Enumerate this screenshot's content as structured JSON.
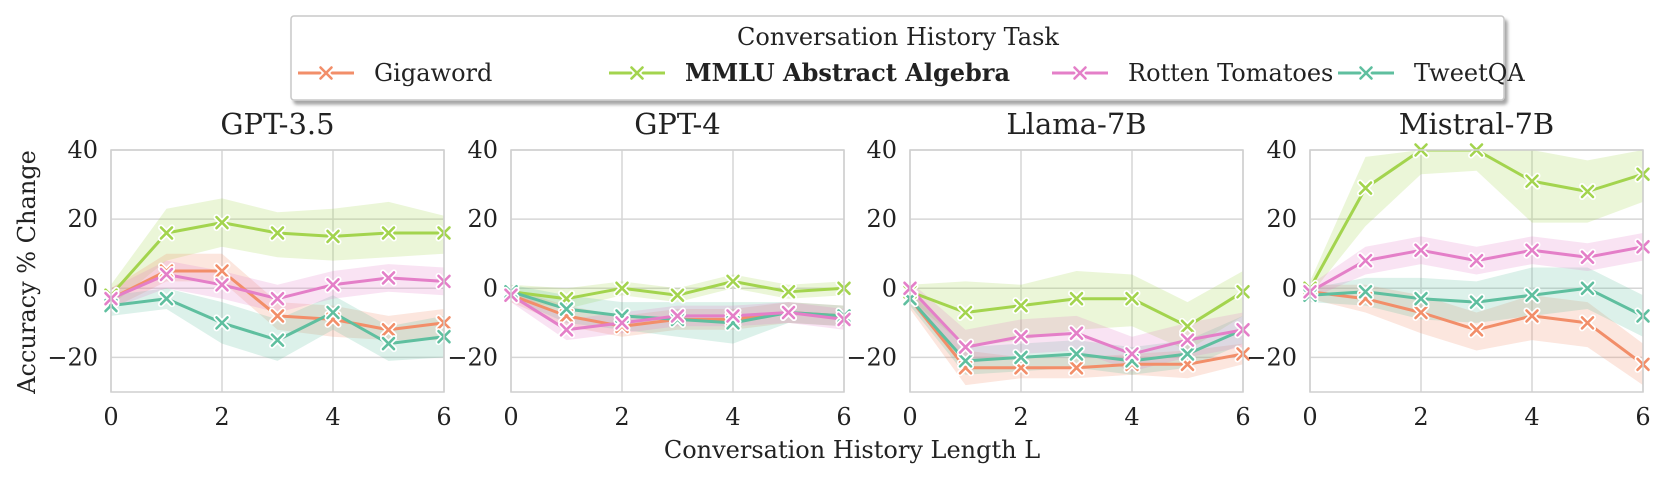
{
  "chart_data": {
    "type": "line",
    "legend": {
      "title": "Conversation History Task",
      "placement": "top-center",
      "entries": [
        {
          "name": "Gigaword",
          "color": "#f28e69",
          "bold": false
        },
        {
          "name": "MMLU Abstract Algebra",
          "color": "#a3d44e",
          "bold": true
        },
        {
          "name": "Rotten Tomatoes",
          "color": "#e47fc8",
          "bold": false
        },
        {
          "name": "TweetQA",
          "color": "#5fbf9f",
          "bold": false
        }
      ]
    },
    "xlabel": "Conversation History Length L",
    "ylabel": "Accuracy % Change",
    "xlim": [
      0,
      6
    ],
    "ylim": [
      -30,
      40
    ],
    "xticks": [
      "0",
      "2",
      "4",
      "6"
    ],
    "yticks": [
      "40",
      "20",
      "0",
      "−20"
    ],
    "x": [
      0,
      1,
      2,
      3,
      4,
      5,
      6
    ],
    "panels": [
      {
        "title": "GPT-3.5",
        "series": [
          {
            "name": "Gigaword",
            "values": [
              -3,
              5,
              5,
              -8,
              -9,
              -12,
              -10
            ],
            "lower": [
              -6,
              2,
              2,
              -12,
              -14,
              -15,
              -15
            ],
            "upper": [
              0,
              10,
              10,
              -4,
              -5,
              -8,
              -6
            ]
          },
          {
            "name": "MMLU Abstract Algebra",
            "values": [
              -2,
              16,
              19,
              16,
              15,
              16,
              16
            ],
            "lower": [
              -5,
              8,
              12,
              9,
              8,
              9,
              10
            ],
            "upper": [
              1,
              23,
              26,
              22,
              23,
              25,
              21
            ]
          },
          {
            "name": "Rotten Tomatoes",
            "values": [
              -3,
              4,
              1,
              -3,
              1,
              3,
              2
            ],
            "lower": [
              -6,
              0,
              -3,
              -7,
              -3,
              -1,
              -2
            ],
            "upper": [
              0,
              8,
              5,
              1,
              5,
              7,
              6
            ]
          },
          {
            "name": "TweetQA",
            "values": [
              -5,
              -3,
              -10,
              -15,
              -7,
              -16,
              -14
            ],
            "lower": [
              -8,
              -6,
              -16,
              -21,
              -12,
              -21,
              -20
            ],
            "upper": [
              -2,
              0,
              -4,
              -9,
              -2,
              -11,
              -8
            ]
          }
        ]
      },
      {
        "title": "GPT-4",
        "series": [
          {
            "name": "Gigaword",
            "values": [
              -2,
              -8,
              -11,
              -9,
              -9,
              -7,
              -8
            ],
            "lower": [
              -4,
              -11,
              -14,
              -12,
              -12,
              -10,
              -11
            ],
            "upper": [
              0,
              -5,
              -8,
              -6,
              -6,
              -4,
              -5
            ]
          },
          {
            "name": "MMLU Abstract Algebra",
            "values": [
              -1,
              -3,
              0,
              -2,
              2,
              -1,
              0
            ],
            "lower": [
              -3,
              -6,
              -2,
              -4,
              0,
              -3,
              -2
            ],
            "upper": [
              1,
              0,
              2,
              0,
              4,
              1,
              2
            ]
          },
          {
            "name": "Rotten Tomatoes",
            "values": [
              -2,
              -12,
              -10,
              -8,
              -8,
              -7,
              -9
            ],
            "lower": [
              -4,
              -15,
              -13,
              -11,
              -11,
              -10,
              -12
            ],
            "upper": [
              0,
              -9,
              -7,
              -5,
              -5,
              -4,
              -6
            ]
          },
          {
            "name": "TweetQA",
            "values": [
              -1,
              -6,
              -8,
              -9,
              -10,
              -7,
              -8
            ],
            "lower": [
              -3,
              -10,
              -12,
              -14,
              -16,
              -10,
              -11
            ],
            "upper": [
              1,
              -2,
              -4,
              -4,
              -4,
              -4,
              -5
            ]
          }
        ]
      },
      {
        "title": "Llama-7B",
        "series": [
          {
            "name": "Gigaword",
            "values": [
              -3,
              -23,
              -23,
              -23,
              -22,
              -22,
              -19
            ],
            "lower": [
              -6,
              -28,
              -26,
              -26,
              -25,
              -26,
              -22
            ],
            "upper": [
              0,
              -18,
              -20,
              -20,
              -19,
              -18,
              -16
            ]
          },
          {
            "name": "MMLU Abstract Algebra",
            "values": [
              -1,
              -7,
              -5,
              -3,
              -3,
              -11,
              -1
            ],
            "lower": [
              -3,
              -17,
              -15,
              -12,
              -11,
              -18,
              -8
            ],
            "upper": [
              1,
              2,
              1,
              5,
              4,
              -4,
              5
            ]
          },
          {
            "name": "Rotten Tomatoes",
            "values": [
              0,
              -17,
              -14,
              -13,
              -19,
              -15,
              -12
            ],
            "lower": [
              -2,
              -22,
              -19,
              -18,
              -24,
              -20,
              -17
            ],
            "upper": [
              2,
              -12,
              -9,
              -8,
              -14,
              -10,
              -7
            ]
          },
          {
            "name": "TweetQA",
            "values": [
              -3,
              -21,
              -20,
              -19,
              -21,
              -19,
              -12
            ],
            "lower": [
              -5,
              -25,
              -24,
              -23,
              -25,
              -23,
              -16
            ],
            "upper": [
              -1,
              -17,
              -16,
              -15,
              -17,
              -15,
              -8
            ]
          }
        ]
      },
      {
        "title": "Mistral-7B",
        "series": [
          {
            "name": "Gigaword",
            "values": [
              -1,
              -3,
              -7,
              -12,
              -8,
              -10,
              -22
            ],
            "lower": [
              -3,
              -7,
              -13,
              -18,
              -15,
              -17,
              -28
            ],
            "upper": [
              1,
              1,
              -2,
              -7,
              -2,
              -4,
              -16
            ]
          },
          {
            "name": "MMLU Abstract Algebra",
            "values": [
              0,
              29,
              40,
              40,
              31,
              28,
              33
            ],
            "lower": [
              -2,
              18,
              33,
              34,
              19,
              19,
              25
            ],
            "upper": [
              2,
              38,
              40,
              40,
              40,
              37,
              40
            ]
          },
          {
            "name": "Rotten Tomatoes",
            "values": [
              -1,
              8,
              11,
              8,
              11,
              9,
              12
            ],
            "lower": [
              -3,
              4,
              7,
              4,
              7,
              5,
              8
            ],
            "upper": [
              1,
              12,
              15,
              12,
              15,
              13,
              16
            ]
          },
          {
            "name": "TweetQA",
            "values": [
              -2,
              -1,
              -3,
              -4,
              -2,
              0,
              -8
            ],
            "lower": [
              -4,
              -5,
              -9,
              -10,
              -8,
              -6,
              -14
            ],
            "upper": [
              0,
              3,
              3,
              2,
              6,
              6,
              -2
            ]
          }
        ]
      }
    ]
  }
}
